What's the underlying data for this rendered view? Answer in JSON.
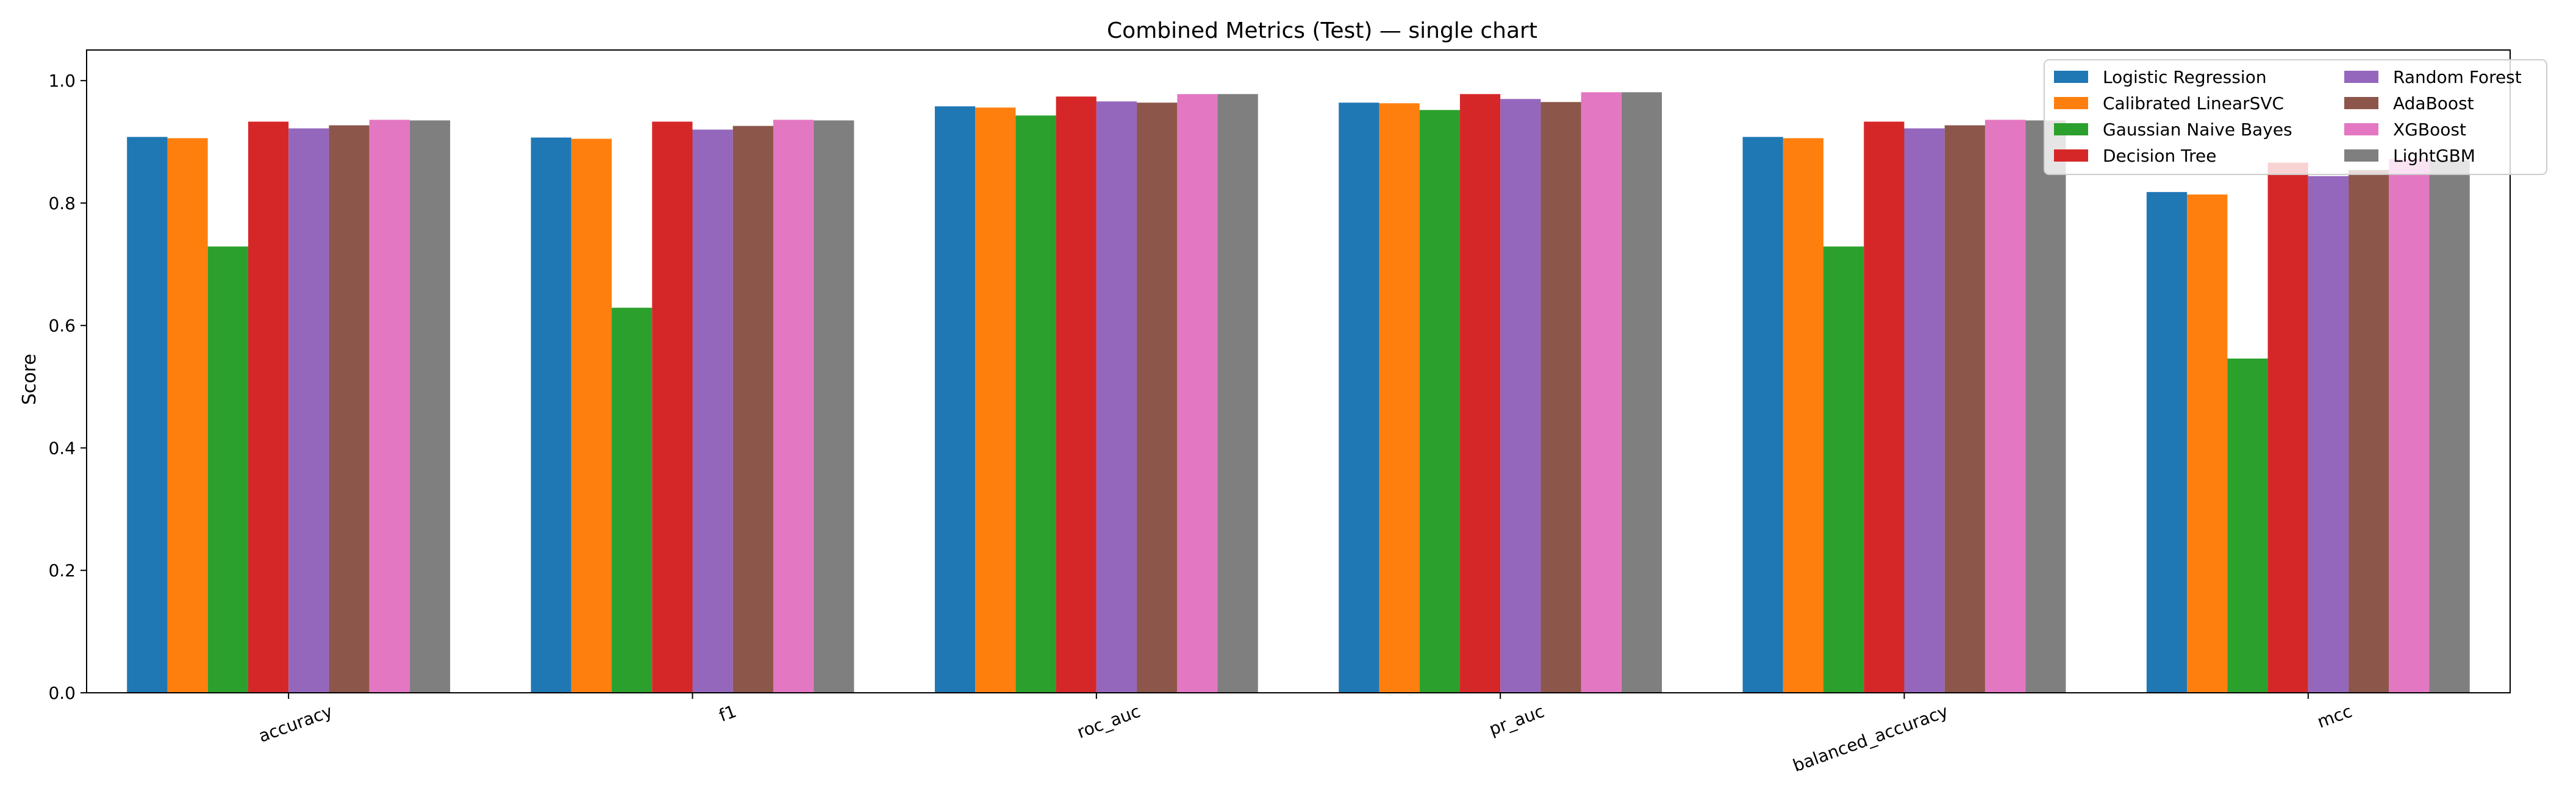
{
  "chart_data": {
    "type": "bar",
    "title": "Combined Metrics (Test) — single chart",
    "xlabel": "",
    "ylabel": "Score",
    "ylim": [
      0,
      1.05
    ],
    "yticks": [
      "0.0",
      "0.2",
      "0.4",
      "0.6",
      "0.8",
      "1.0"
    ],
    "grid": false,
    "legend_position": "top-right",
    "categories": [
      "accuracy",
      "f1",
      "roc_auc",
      "pr_auc",
      "balanced_accuracy",
      "mcc"
    ],
    "series": [
      {
        "name": "Logistic Regression",
        "color": "#1f77b4",
        "values": [
          0.908,
          0.907,
          0.958,
          0.964,
          0.908,
          0.818
        ]
      },
      {
        "name": "Calibrated LinearSVC",
        "color": "#ff7f0e",
        "values": [
          0.906,
          0.905,
          0.956,
          0.963,
          0.906,
          0.814
        ]
      },
      {
        "name": "Gaussian Naive Bayes",
        "color": "#2ca02c",
        "values": [
          0.729,
          0.629,
          0.943,
          0.952,
          0.729,
          0.546
        ]
      },
      {
        "name": "Decision Tree",
        "color": "#d62728",
        "values": [
          0.933,
          0.933,
          0.974,
          0.978,
          0.933,
          0.866
        ]
      },
      {
        "name": "Random Forest",
        "color": "#9467bd",
        "values": [
          0.922,
          0.92,
          0.966,
          0.97,
          0.922,
          0.844
        ]
      },
      {
        "name": "AdaBoost",
        "color": "#8c564b",
        "values": [
          0.927,
          0.926,
          0.964,
          0.965,
          0.927,
          0.854
        ]
      },
      {
        "name": "XGBoost",
        "color": "#e377c2",
        "values": [
          0.936,
          0.936,
          0.978,
          0.981,
          0.936,
          0.872
        ]
      },
      {
        "name": "LightGBM",
        "color": "#7f7f7f",
        "values": [
          0.935,
          0.935,
          0.978,
          0.981,
          0.935,
          0.87
        ]
      }
    ]
  }
}
